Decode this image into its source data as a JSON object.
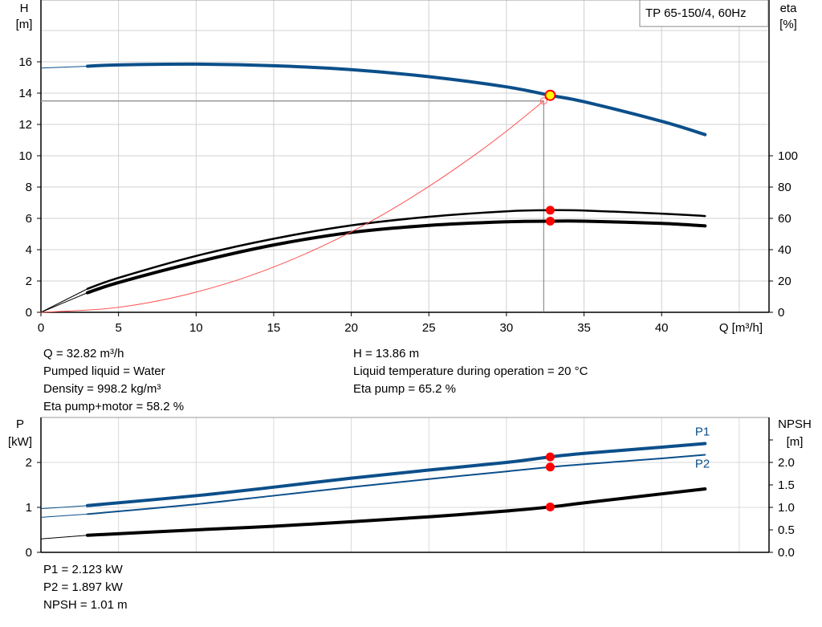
{
  "chart_data": [
    {
      "type": "line",
      "title": "TP 65-150/4, 60Hz",
      "xlabel": "Q [m³/h]",
      "ylabel_left": [
        "H",
        "[m]"
      ],
      "ylabel_right": [
        "eta",
        "[%]"
      ],
      "xlim": [
        0,
        46
      ],
      "ylim_left": [
        0,
        20
      ],
      "ylim_right": [
        0,
        100
      ],
      "grid": true,
      "x_ticks": [
        "0",
        "5",
        "10",
        "15",
        "20",
        "25",
        "30",
        "35",
        "40"
      ],
      "y_ticks_left": [
        "0",
        "2",
        "4",
        "6",
        "8",
        "10",
        "12",
        "14",
        "16"
      ],
      "y_ticks_right": [
        "0",
        "20",
        "40",
        "60",
        "80",
        "100"
      ],
      "series": [
        {
          "key": "H",
          "axis": "left",
          "color": "#0b4f8a",
          "x": [
            3,
            5,
            10,
            15,
            20,
            25,
            30,
            32.82,
            35,
            40,
            42.8
          ],
          "y": [
            15.72,
            15.8,
            15.85,
            15.75,
            15.5,
            15.05,
            14.4,
            13.86,
            13.45,
            12.2,
            11.35
          ],
          "extrapolated": {
            "x": [
              0,
              3
            ],
            "y": [
              15.6,
              15.72
            ]
          }
        },
        {
          "key": "eta_pump",
          "axis": "right",
          "color": "#000000",
          "x": [
            3,
            5,
            10,
            15,
            20,
            25,
            30,
            32.82,
            35,
            40,
            42.8
          ],
          "y": [
            15,
            22,
            36,
            47,
            55.5,
            61,
            64.5,
            65.2,
            65,
            63,
            61.5
          ],
          "extrapolated": {
            "x": [
              0,
              3
            ],
            "y": [
              0,
              15
            ]
          }
        },
        {
          "key": "eta_pump_motor",
          "axis": "right",
          "color": "#000000",
          "x": [
            3,
            5,
            10,
            15,
            20,
            25,
            30,
            32.82,
            35,
            40,
            42.8
          ],
          "y": [
            12.5,
            19,
            32,
            43,
            51,
            55.5,
            57.8,
            58.2,
            58.2,
            56.8,
            55.2
          ],
          "extrapolated": {
            "x": [
              0,
              3
            ],
            "y": [
              0,
              12.5
            ]
          }
        },
        {
          "key": "system_curve",
          "axis": "left",
          "color": "#ff5050",
          "x": [
            0,
            4,
            7,
            10,
            13,
            16,
            19,
            22,
            25,
            28,
            30,
            32.4
          ],
          "y": [
            0,
            0.21,
            0.63,
            1.29,
            2.17,
            3.29,
            4.64,
            6.22,
            8.04,
            10.08,
            11.57,
            13.5
          ]
        }
      ],
      "duty_point": {
        "Q": 32.82,
        "H": 13.86,
        "eta_pump": 65.2,
        "eta_pump_motor": 58.2,
        "required_Q": 32.4,
        "required_H": 13.5
      }
    },
    {
      "type": "line",
      "xlim": [
        0,
        46
      ],
      "ylim_left": [
        0,
        3
      ],
      "ylim_right": [
        0,
        3
      ],
      "ylabel_left": [
        "P",
        "[kW]"
      ],
      "ylabel_right": [
        "NPSH",
        "[m]"
      ],
      "grid": true,
      "y_ticks_left": [
        "0",
        "1",
        "2"
      ],
      "y_ticks_right": [
        "0.0",
        "0.5",
        "1.0",
        "1.5",
        "2.0"
      ],
      "series": [
        {
          "key": "P1",
          "name": "P1",
          "color": "#0b4f8a",
          "x": [
            3,
            10,
            15,
            20,
            25,
            30,
            32.82,
            35,
            40,
            42.8
          ],
          "y": [
            1.04,
            1.26,
            1.45,
            1.65,
            1.83,
            2.0,
            2.123,
            2.2,
            2.34,
            2.42
          ],
          "extrapolated": {
            "x": [
              0,
              3
            ],
            "y": [
              0.97,
              1.04
            ]
          }
        },
        {
          "key": "P2",
          "name": "P2",
          "color": "#0b4f8a",
          "x": [
            3,
            10,
            15,
            20,
            25,
            30,
            32.82,
            35,
            40,
            42.8
          ],
          "y": [
            0.85,
            1.07,
            1.26,
            1.45,
            1.63,
            1.8,
            1.897,
            1.96,
            2.09,
            2.17
          ],
          "extrapolated": {
            "x": [
              0,
              3
            ],
            "y": [
              0.78,
              0.85
            ]
          }
        },
        {
          "key": "NPSH",
          "color": "#000000",
          "x": [
            3,
            10,
            15,
            20,
            25,
            30,
            32.82,
            35,
            40,
            42.8
          ],
          "y": [
            0.38,
            0.5,
            0.58,
            0.68,
            0.79,
            0.92,
            1.01,
            1.1,
            1.3,
            1.41
          ],
          "extrapolated": {
            "x": [
              0,
              3
            ],
            "y": [
              0.3,
              0.38
            ]
          }
        }
      ],
      "duty_point": {
        "Q": 32.82,
        "P1": 2.123,
        "P2": 1.897,
        "NPSH": 1.01
      }
    }
  ],
  "info_top_left": [
    "Q = 32.82 m³/h",
    "Pumped liquid = Water",
    "Density = 998.2 kg/m³",
    "Eta pump+motor = 58.2 %"
  ],
  "info_top_right": [
    "H = 13.86 m",
    "Liquid temperature during operation = 20 °C",
    "Eta pump = 65.2 %"
  ],
  "info_bottom": [
    "P1 = 2.123 kW",
    "P2 = 1.897 kW",
    "NPSH = 1.01 m"
  ],
  "colors": {
    "curve_blue": "#0b4f8a",
    "duty_marker": "#ff0000",
    "duty_fill": "#ffff00",
    "grid": "#d0d0d0"
  }
}
